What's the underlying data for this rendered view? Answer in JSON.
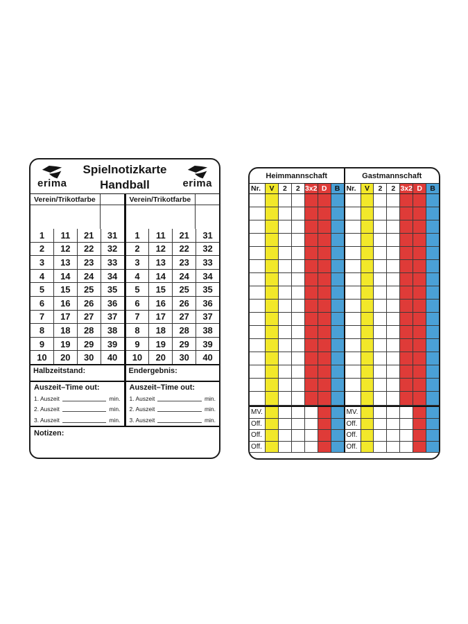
{
  "brand": {
    "name": "erima"
  },
  "left_card": {
    "title_line1": "Spielnotizkarte",
    "title_line2": "Handball",
    "verein_label": "Verein/Trikotfarbe",
    "number_rows": [
      [
        "1",
        "11",
        "21",
        "31"
      ],
      [
        "2",
        "12",
        "22",
        "32"
      ],
      [
        "3",
        "13",
        "23",
        "33"
      ],
      [
        "4",
        "14",
        "24",
        "34"
      ],
      [
        "5",
        "15",
        "25",
        "35"
      ],
      [
        "6",
        "16",
        "26",
        "36"
      ],
      [
        "7",
        "17",
        "27",
        "37"
      ],
      [
        "8",
        "18",
        "28",
        "38"
      ],
      [
        "9",
        "19",
        "29",
        "39"
      ],
      [
        "10",
        "20",
        "30",
        "40"
      ]
    ],
    "halbzeitstand_label": "Halbzeitstand:",
    "endergebnis_label": "Endergebnis:",
    "auszeit_heading": "Auszeit–Time out:",
    "auszeit_rows": [
      "1. Auszeit",
      "2. Auszeit",
      "3. Auszeit"
    ],
    "min_label": "min.",
    "notizen_label": "Notizen:"
  },
  "right_card": {
    "home_label": "Heimmannschaft",
    "guest_label": "Gastmannschaft",
    "column_headers": [
      {
        "label": "Nr.",
        "bg": "white",
        "fg": "#111111"
      },
      {
        "label": "V",
        "bg": "yellow",
        "fg": "#111111"
      },
      {
        "label": "2",
        "bg": "white",
        "fg": "#111111"
      },
      {
        "label": "2",
        "bg": "white",
        "fg": "#111111"
      },
      {
        "label": "3x2",
        "bg": "red",
        "fg": "#ffffff"
      },
      {
        "label": "D",
        "bg": "red",
        "fg": "#ffffff"
      },
      {
        "label": "B",
        "bg": "blue",
        "fg": "#111111"
      }
    ],
    "player_row_count": 16,
    "player_row_pattern": [
      "white",
      "yellow",
      "white",
      "white",
      "red",
      "red",
      "blue"
    ],
    "official_rows": [
      "MV.",
      "Off.",
      "Off.",
      "Off."
    ],
    "official_row_pattern": [
      "white",
      "yellow",
      "white",
      "white",
      "white",
      "red",
      "blue"
    ],
    "colors": {
      "yellow": "#F2E82A",
      "red": "#DF3B38",
      "blue": "#4AA0D6",
      "white": "#FFFFFF"
    }
  }
}
